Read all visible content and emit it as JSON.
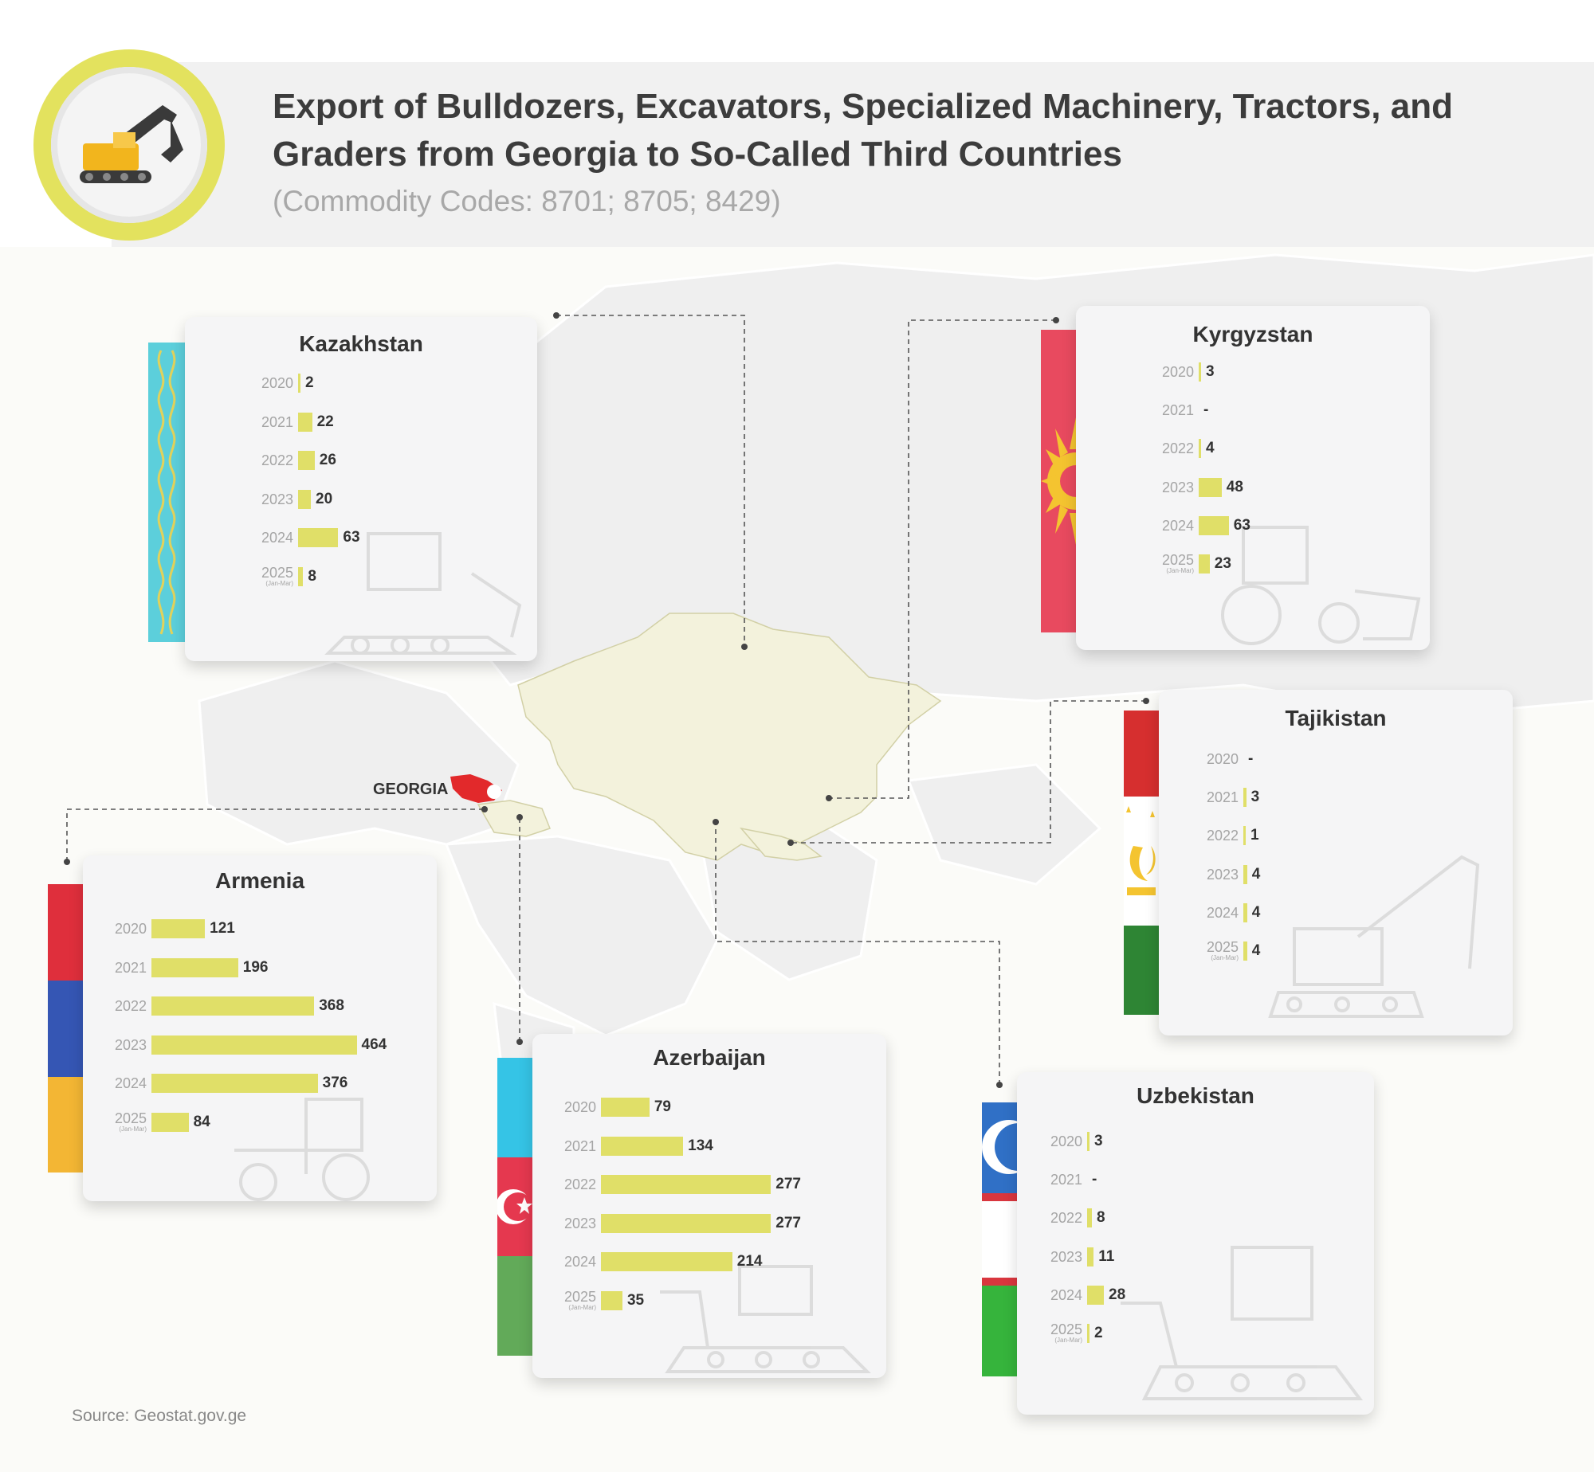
{
  "header": {
    "title": "Export of Bulldozers, Excavators, Specialized Machinery, Tractors, and Graders from Georgia to So-Called Third Countries",
    "subtitle": "(Commodity Codes: 8701; 8705; 8429)",
    "logo_icon": "excavator-icon"
  },
  "map": {
    "georgia_label": "GEORGIA",
    "georgia_color": "#e2292b",
    "highlight_color": "#f3f2dc"
  },
  "source": "Source: Geostat.gov.ge",
  "bar_color": "#e0df68",
  "chart_data": [
    {
      "type": "bar",
      "title": "Kazakhstan",
      "categories": [
        "2020",
        "2021",
        "2022",
        "2023",
        "2024",
        "2025"
      ],
      "category_notes": [
        "",
        "",
        "",
        "",
        "",
        "(Jan-Mar)"
      ],
      "values": [
        2,
        22,
        26,
        20,
        63,
        8
      ],
      "value_labels": [
        "2",
        "22",
        "26",
        "20",
        "63",
        "8"
      ],
      "orientation": "horizontal",
      "flag_colors": [
        "#5ccfdb",
        "#e2d25b"
      ]
    },
    {
      "type": "bar",
      "title": "Kyrgyzstan",
      "categories": [
        "2020",
        "2021",
        "2022",
        "2023",
        "2024",
        "2025"
      ],
      "category_notes": [
        "",
        "",
        "",
        "",
        "",
        "(Jan-Mar)"
      ],
      "values": [
        3,
        0,
        4,
        48,
        63,
        23
      ],
      "value_labels": [
        "3",
        "-",
        "4",
        "48",
        "63",
        "23"
      ],
      "orientation": "horizontal",
      "flag_colors": [
        "#e84a5f",
        "#f4c430"
      ]
    },
    {
      "type": "bar",
      "title": "Tajikistan",
      "categories": [
        "2020",
        "2021",
        "2022",
        "2023",
        "2024",
        "2025"
      ],
      "category_notes": [
        "",
        "",
        "",
        "",
        "",
        "(Jan-Mar)"
      ],
      "values": [
        0,
        3,
        1,
        4,
        4,
        4
      ],
      "value_labels": [
        "-",
        "3",
        "1",
        "4",
        "4",
        "4"
      ],
      "orientation": "horizontal",
      "flag_colors": [
        "#d62f2f",
        "#ffffff",
        "#2e8534",
        "#f4c430"
      ]
    },
    {
      "type": "bar",
      "title": "Armenia",
      "categories": [
        "2020",
        "2021",
        "2022",
        "2023",
        "2024",
        "2025"
      ],
      "category_notes": [
        "",
        "",
        "",
        "",
        "",
        "(Jan-Mar)"
      ],
      "values": [
        121,
        196,
        368,
        464,
        376,
        84
      ],
      "value_labels": [
        "121",
        "196",
        "368",
        "464",
        "376",
        "84"
      ],
      "orientation": "horizontal",
      "flag_colors": [
        "#df2f3c",
        "#3556b4",
        "#f3b634"
      ]
    },
    {
      "type": "bar",
      "title": "Azerbaijan",
      "categories": [
        "2020",
        "2021",
        "2022",
        "2023",
        "2024",
        "2025"
      ],
      "category_notes": [
        "",
        "",
        "",
        "",
        "",
        "(Jan-Mar)"
      ],
      "values": [
        79,
        134,
        277,
        277,
        214,
        35
      ],
      "value_labels": [
        "79",
        "134",
        "277",
        "277",
        "214",
        "35"
      ],
      "orientation": "horizontal",
      "flag_colors": [
        "#35c4e6",
        "#e5384f",
        "#62aa59"
      ]
    },
    {
      "type": "bar",
      "title": "Uzbekistan",
      "categories": [
        "2020",
        "2021",
        "2022",
        "2023",
        "2024",
        "2025"
      ],
      "category_notes": [
        "",
        "",
        "",
        "",
        "",
        "(Jan-Mar)"
      ],
      "values": [
        3,
        0,
        8,
        11,
        28,
        2
      ],
      "value_labels": [
        "3",
        "-",
        "8",
        "11",
        "28",
        "2"
      ],
      "orientation": "horizontal",
      "flag_colors": [
        "#3070c6",
        "#ffffff",
        "#d9363e",
        "#36b43c"
      ]
    }
  ]
}
